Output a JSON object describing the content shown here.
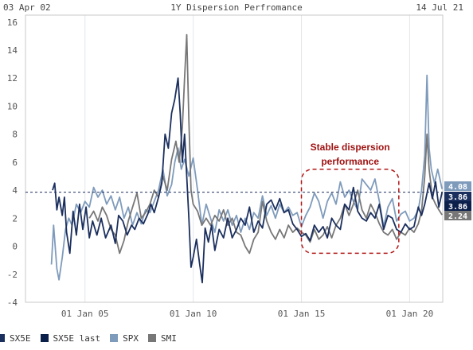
{
  "header": {
    "start_date": "03 Apr 02",
    "end_date": "14 Jul 21",
    "title": "1Y Dispersion Perfromance"
  },
  "annotation": {
    "line1": "Stable dispersion",
    "line2": "performance",
    "color": "#9e1010"
  },
  "chart_data": {
    "type": "line",
    "title": "1Y Dispersion Perfromance",
    "xlabel": "",
    "ylabel": "",
    "ylim": [
      -4,
      16.5
    ],
    "yticks": [
      -4,
      -2,
      0,
      2,
      4,
      6,
      8,
      10,
      12,
      14,
      16
    ],
    "xticks": [
      "01 Jan 05",
      "01 Jan 10",
      "01 Jan 15",
      "01 Jan 20"
    ],
    "xlim_years": [
      2002.25,
      2021.53
    ],
    "grid": "vertical lines at x ticks",
    "reference_line": {
      "value": 3.86,
      "style": "dashed",
      "color": "#1b2f5e"
    },
    "highlight_region": {
      "x": [
        2015.0,
        2019.5
      ],
      "y": [
        -0.5,
        5.5
      ],
      "label": "Stable dispersion performance"
    },
    "series": [
      {
        "name": "SX5E",
        "color": "#1b2f5e",
        "points": [
          [
            2003.5,
            4.0
          ],
          [
            2003.6,
            4.5
          ],
          [
            2003.7,
            2.6
          ],
          [
            2003.8,
            3.5
          ],
          [
            2003.95,
            2.2
          ],
          [
            2004.05,
            3.5
          ],
          [
            2004.15,
            1.0
          ],
          [
            2004.3,
            -0.5
          ],
          [
            2004.45,
            2.5
          ],
          [
            2004.6,
            0.8
          ],
          [
            2004.75,
            3.0
          ],
          [
            2004.9,
            1.2
          ],
          [
            2005.05,
            2.8
          ],
          [
            2005.2,
            0.6
          ],
          [
            2005.35,
            1.8
          ],
          [
            2005.55,
            0.8
          ],
          [
            2005.75,
            2.0
          ],
          [
            2005.95,
            0.6
          ],
          [
            2006.2,
            1.5
          ],
          [
            2006.4,
            0.2
          ],
          [
            2006.55,
            2.2
          ],
          [
            2006.75,
            1.8
          ],
          [
            2006.95,
            0.8
          ],
          [
            2007.15,
            1.5
          ],
          [
            2007.3,
            1.2
          ],
          [
            2007.5,
            2.0
          ],
          [
            2007.7,
            1.6
          ],
          [
            2007.9,
            2.3
          ],
          [
            2008.05,
            3.0
          ],
          [
            2008.2,
            2.4
          ],
          [
            2008.4,
            3.5
          ],
          [
            2008.55,
            4.5
          ],
          [
            2008.7,
            8.0
          ],
          [
            2008.85,
            7.0
          ],
          [
            2009.0,
            9.5
          ],
          [
            2009.15,
            10.5
          ],
          [
            2009.3,
            12.0
          ],
          [
            2009.4,
            9.5
          ],
          [
            2009.5,
            6.0
          ],
          [
            2009.6,
            8.0
          ],
          [
            2009.7,
            5.0
          ],
          [
            2009.8,
            2.0
          ],
          [
            2009.9,
            -1.5
          ],
          [
            2010.0,
            -0.8
          ],
          [
            2010.15,
            0.5
          ],
          [
            2010.3,
            -1.3
          ],
          [
            2010.42,
            -2.6
          ],
          [
            2010.55,
            1.3
          ],
          [
            2010.7,
            0.3
          ],
          [
            2010.85,
            1.5
          ],
          [
            2011.0,
            -0.3
          ],
          [
            2011.2,
            1.2
          ],
          [
            2011.4,
            0.6
          ],
          [
            2011.6,
            2.0
          ],
          [
            2011.8,
            0.6
          ],
          [
            2012.0,
            1.2
          ],
          [
            2012.2,
            2.0
          ],
          [
            2012.4,
            1.5
          ],
          [
            2012.6,
            2.8
          ],
          [
            2012.8,
            1.0
          ],
          [
            2013.0,
            1.8
          ],
          [
            2013.2,
            1.3
          ],
          [
            2013.4,
            3.0
          ],
          [
            2013.6,
            3.3
          ],
          [
            2013.8,
            2.6
          ],
          [
            2014.0,
            3.4
          ],
          [
            2014.2,
            2.4
          ],
          [
            2014.4,
            2.6
          ],
          [
            2014.6,
            1.6
          ],
          [
            2014.8,
            1.2
          ],
          [
            2015.0,
            0.7
          ],
          [
            2015.2,
            0.9
          ],
          [
            2015.4,
            0.4
          ],
          [
            2015.6,
            1.5
          ],
          [
            2015.8,
            1.0
          ],
          [
            2016.0,
            1.4
          ],
          [
            2016.2,
            0.6
          ],
          [
            2016.4,
            2.0
          ],
          [
            2016.6,
            1.5
          ],
          [
            2016.8,
            1.2
          ],
          [
            2017.0,
            3.0
          ],
          [
            2017.2,
            2.6
          ],
          [
            2017.4,
            4.2
          ],
          [
            2017.6,
            2.5
          ],
          [
            2017.8,
            2.0
          ],
          [
            2018.0,
            1.8
          ],
          [
            2018.2,
            2.4
          ],
          [
            2018.4,
            2.0
          ],
          [
            2018.6,
            3.0
          ],
          [
            2018.8,
            1.2
          ],
          [
            2019.0,
            2.2
          ],
          [
            2019.2,
            2.0
          ],
          [
            2019.4,
            1.2
          ],
          [
            2019.6,
            1.0
          ],
          [
            2019.8,
            1.6
          ],
          [
            2020.0,
            1.2
          ],
          [
            2020.2,
            1.4
          ],
          [
            2020.4,
            2.8
          ],
          [
            2020.55,
            2.2
          ],
          [
            2020.7,
            3.0
          ],
          [
            2020.9,
            4.5
          ],
          [
            2021.05,
            3.4
          ],
          [
            2021.2,
            4.6
          ],
          [
            2021.35,
            2.8
          ],
          [
            2021.5,
            3.86
          ]
        ]
      },
      {
        "name": "SX5E last",
        "color": "#0b1f4b",
        "points": []
      },
      {
        "name": "SPX",
        "color": "#7f9bbc",
        "points": [
          [
            2003.45,
            -1.3
          ],
          [
            2003.55,
            1.5
          ],
          [
            2003.7,
            -1.6
          ],
          [
            2003.8,
            -2.4
          ],
          [
            2003.95,
            -0.8
          ],
          [
            2004.1,
            1.2
          ],
          [
            2004.25,
            2.0
          ],
          [
            2004.4,
            1.5
          ],
          [
            2004.6,
            3.0
          ],
          [
            2004.8,
            2.4
          ],
          [
            2005.0,
            3.2
          ],
          [
            2005.2,
            2.8
          ],
          [
            2005.4,
            4.2
          ],
          [
            2005.6,
            3.5
          ],
          [
            2005.8,
            4.0
          ],
          [
            2006.0,
            3.0
          ],
          [
            2006.2,
            3.6
          ],
          [
            2006.4,
            2.6
          ],
          [
            2006.6,
            3.5
          ],
          [
            2006.8,
            2.0
          ],
          [
            2007.0,
            2.8
          ],
          [
            2007.2,
            1.5
          ],
          [
            2007.4,
            2.4
          ],
          [
            2007.6,
            1.6
          ],
          [
            2007.8,
            2.6
          ],
          [
            2008.0,
            2.4
          ],
          [
            2008.2,
            3.2
          ],
          [
            2008.4,
            4.0
          ],
          [
            2008.6,
            5.5
          ],
          [
            2008.8,
            3.6
          ],
          [
            2009.0,
            4.4
          ],
          [
            2009.15,
            6.0
          ],
          [
            2009.3,
            7.0
          ],
          [
            2009.45,
            5.5
          ],
          [
            2009.6,
            6.2
          ],
          [
            2009.8,
            5.0
          ],
          [
            2010.0,
            6.3
          ],
          [
            2010.2,
            4.0
          ],
          [
            2010.4,
            1.5
          ],
          [
            2010.6,
            3.0
          ],
          [
            2010.8,
            2.0
          ],
          [
            2011.0,
            1.0
          ],
          [
            2011.2,
            2.6
          ],
          [
            2011.4,
            1.8
          ],
          [
            2011.6,
            2.6
          ],
          [
            2011.8,
            1.5
          ],
          [
            2012.0,
            2.2
          ],
          [
            2012.2,
            1.0
          ],
          [
            2012.4,
            2.0
          ],
          [
            2012.6,
            1.2
          ],
          [
            2012.8,
            2.4
          ],
          [
            2013.0,
            2.0
          ],
          [
            2013.2,
            3.6
          ],
          [
            2013.4,
            2.2
          ],
          [
            2013.6,
            2.9
          ],
          [
            2013.8,
            2.0
          ],
          [
            2014.0,
            3.0
          ],
          [
            2014.2,
            2.4
          ],
          [
            2014.4,
            2.8
          ],
          [
            2014.6,
            2.2
          ],
          [
            2014.8,
            2.4
          ],
          [
            2015.0,
            1.4
          ],
          [
            2015.2,
            2.2
          ],
          [
            2015.4,
            2.8
          ],
          [
            2015.6,
            3.8
          ],
          [
            2015.8,
            3.2
          ],
          [
            2016.0,
            2.0
          ],
          [
            2016.2,
            3.2
          ],
          [
            2016.4,
            3.8
          ],
          [
            2016.6,
            3.0
          ],
          [
            2016.8,
            4.6
          ],
          [
            2017.0,
            3.5
          ],
          [
            2017.2,
            4.0
          ],
          [
            2017.4,
            3.2
          ],
          [
            2017.6,
            2.6
          ],
          [
            2017.8,
            4.8
          ],
          [
            2018.0,
            4.4
          ],
          [
            2018.2,
            4.0
          ],
          [
            2018.4,
            4.8
          ],
          [
            2018.6,
            3.2
          ],
          [
            2018.8,
            1.4
          ],
          [
            2019.0,
            2.8
          ],
          [
            2019.2,
            3.4
          ],
          [
            2019.4,
            1.8
          ],
          [
            2019.6,
            2.3
          ],
          [
            2019.8,
            2.5
          ],
          [
            2020.0,
            1.8
          ],
          [
            2020.2,
            2.0
          ],
          [
            2020.4,
            2.6
          ],
          [
            2020.55,
            4.0
          ],
          [
            2020.7,
            6.5
          ],
          [
            2020.8,
            12.2
          ],
          [
            2020.9,
            7.0
          ],
          [
            2021.0,
            5.5
          ],
          [
            2021.15,
            4.5
          ],
          [
            2021.3,
            5.5
          ],
          [
            2021.5,
            4.08
          ]
        ]
      },
      {
        "name": "SMI",
        "color": "#777777",
        "points": [
          [
            2005.2,
            2.0
          ],
          [
            2005.4,
            2.5
          ],
          [
            2005.6,
            1.8
          ],
          [
            2005.8,
            2.8
          ],
          [
            2006.0,
            2.2
          ],
          [
            2006.2,
            1.2
          ],
          [
            2006.4,
            0.8
          ],
          [
            2006.6,
            -0.5
          ],
          [
            2006.8,
            0.4
          ],
          [
            2007.0,
            1.8
          ],
          [
            2007.2,
            2.8
          ],
          [
            2007.4,
            3.8
          ],
          [
            2007.6,
            2.0
          ],
          [
            2007.8,
            2.4
          ],
          [
            2008.0,
            3.0
          ],
          [
            2008.2,
            4.0
          ],
          [
            2008.4,
            3.5
          ],
          [
            2008.6,
            5.0
          ],
          [
            2008.8,
            4.0
          ],
          [
            2009.0,
            6.2
          ],
          [
            2009.2,
            7.5
          ],
          [
            2009.35,
            6.0
          ],
          [
            2009.5,
            8.5
          ],
          [
            2009.6,
            12.0
          ],
          [
            2009.7,
            15.1
          ],
          [
            2009.8,
            9.0
          ],
          [
            2009.9,
            4.0
          ],
          [
            2010.0,
            3.0
          ],
          [
            2010.2,
            2.5
          ],
          [
            2010.4,
            1.5
          ],
          [
            2010.6,
            2.0
          ],
          [
            2010.8,
            1.5
          ],
          [
            2011.0,
            2.2
          ],
          [
            2011.2,
            1.8
          ],
          [
            2011.4,
            2.6
          ],
          [
            2011.6,
            1.5
          ],
          [
            2011.8,
            2.0
          ],
          [
            2012.0,
            1.0
          ],
          [
            2012.2,
            0.8
          ],
          [
            2012.4,
            0.0
          ],
          [
            2012.6,
            -0.5
          ],
          [
            2012.8,
            0.5
          ],
          [
            2013.0,
            1.0
          ],
          [
            2013.2,
            3.2
          ],
          [
            2013.4,
            1.8
          ],
          [
            2013.6,
            1.0
          ],
          [
            2013.8,
            0.5
          ],
          [
            2014.0,
            1.2
          ],
          [
            2014.2,
            0.6
          ],
          [
            2014.4,
            1.5
          ],
          [
            2014.6,
            1.0
          ],
          [
            2014.8,
            1.3
          ],
          [
            2015.0,
            1.0
          ],
          [
            2015.2,
            0.8
          ],
          [
            2015.4,
            0.3
          ],
          [
            2015.6,
            1.2
          ],
          [
            2015.8,
            0.5
          ],
          [
            2016.0,
            0.8
          ],
          [
            2016.2,
            1.4
          ],
          [
            2016.4,
            0.6
          ],
          [
            2016.6,
            1.5
          ],
          [
            2016.8,
            2.0
          ],
          [
            2017.0,
            3.0
          ],
          [
            2017.2,
            2.2
          ],
          [
            2017.4,
            3.0
          ],
          [
            2017.6,
            4.0
          ],
          [
            2017.8,
            2.6
          ],
          [
            2018.0,
            2.0
          ],
          [
            2018.2,
            3.0
          ],
          [
            2018.4,
            2.4
          ],
          [
            2018.6,
            1.6
          ],
          [
            2018.8,
            1.0
          ],
          [
            2019.0,
            0.8
          ],
          [
            2019.2,
            1.2
          ],
          [
            2019.4,
            0.5
          ],
          [
            2019.6,
            1.0
          ],
          [
            2019.8,
            0.8
          ],
          [
            2020.0,
            1.3
          ],
          [
            2020.2,
            1.0
          ],
          [
            2020.4,
            1.6
          ],
          [
            2020.55,
            2.5
          ],
          [
            2020.7,
            5.0
          ],
          [
            2020.8,
            8.0
          ],
          [
            2020.9,
            5.5
          ],
          [
            2021.05,
            3.5
          ],
          [
            2021.2,
            3.0
          ],
          [
            2021.35,
            2.6
          ],
          [
            2021.5,
            2.24
          ]
        ]
      }
    ],
    "last_values": [
      {
        "label": "4.08",
        "value": 4.08,
        "color": "#7f9bbc"
      },
      {
        "label": "3.86",
        "value": 3.86,
        "color": "#1b2f5e"
      },
      {
        "label": "3.86",
        "value": 3.86,
        "color": "#0b1f4b"
      },
      {
        "label": "2.24",
        "value": 2.24,
        "color": "#777777"
      }
    ],
    "legend": {
      "placement": "bottom",
      "items": [
        {
          "label": "SX5E",
          "color": "#1b2f5e"
        },
        {
          "label": "SX5E last",
          "color": "#0b1f4b"
        },
        {
          "label": "SPX",
          "color": "#7f9bbc"
        },
        {
          "label": "SMI",
          "color": "#777777"
        }
      ]
    }
  }
}
